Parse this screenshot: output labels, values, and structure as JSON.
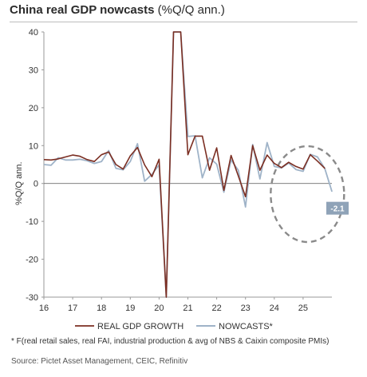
{
  "title": {
    "main": "China real GDP nowcasts",
    "suffix": " (%Q/Q ann.)"
  },
  "footnote": "* F(real retail sales, real FAI, industrial production & avg of NBS & Caixin composite PMIs)",
  "source": "Source: Pictet Asset Management, CEIC, Refinitiv",
  "colors": {
    "gdp": "#7b2e22",
    "nowcast": "#9fb3c8",
    "callout_bg": "#8fa3b8",
    "circle": "#8a8a8a",
    "grid": "#e9e9e9"
  },
  "chart_data": {
    "type": "line",
    "ylabel": "%Q/Q ann.",
    "xlabel": "",
    "ylim": [
      -30,
      40
    ],
    "yticks": [
      -30,
      -20,
      -10,
      0,
      10,
      20,
      30,
      40
    ],
    "xlim": [
      2016,
      2026
    ],
    "xticks": [
      2016,
      2017,
      2018,
      2019,
      2020,
      2021,
      2022,
      2023,
      2024,
      2025
    ],
    "xtick_labels": [
      "16",
      "17",
      "18",
      "19",
      "20",
      "21",
      "22",
      "23",
      "24",
      "25"
    ],
    "grid": false,
    "legend": "bottom",
    "series": [
      {
        "name": "REAL GDP GROWTH",
        "points": [
          [
            2016.0,
            6.3
          ],
          [
            2016.25,
            6.2
          ],
          [
            2016.5,
            6.5
          ],
          [
            2016.75,
            7.0
          ],
          [
            2017.0,
            7.5
          ],
          [
            2017.25,
            7.2
          ],
          [
            2017.5,
            6.3
          ],
          [
            2017.75,
            5.8
          ],
          [
            2018.0,
            7.6
          ],
          [
            2018.25,
            8.3
          ],
          [
            2018.5,
            5.0
          ],
          [
            2018.75,
            3.8
          ],
          [
            2019.0,
            7.3
          ],
          [
            2019.25,
            9.5
          ],
          [
            2019.5,
            4.9
          ],
          [
            2019.75,
            1.8
          ],
          [
            2020.0,
            6.4
          ],
          [
            2020.25,
            -30.0
          ],
          [
            2020.5,
            40.0
          ],
          [
            2020.75,
            40.0
          ],
          [
            2021.0,
            7.6
          ],
          [
            2021.25,
            12.5
          ],
          [
            2021.5,
            12.5
          ],
          [
            2021.75,
            3.5
          ],
          [
            2022.0,
            9.4
          ],
          [
            2022.25,
            -1.8
          ],
          [
            2022.5,
            7.4
          ],
          [
            2022.75,
            2.0
          ],
          [
            2023.0,
            -3.5
          ],
          [
            2023.25,
            10.0
          ],
          [
            2023.5,
            3.5
          ],
          [
            2023.75,
            7.5
          ],
          [
            2024.0,
            5.3
          ],
          [
            2024.25,
            4.2
          ],
          [
            2024.5,
            5.6
          ],
          [
            2024.75,
            4.5
          ],
          [
            2025.0,
            3.8
          ],
          [
            2025.25,
            7.6
          ],
          [
            2025.5,
            5.9
          ],
          [
            2025.75,
            4.0
          ]
        ]
      },
      {
        "name": "NOWCASTS*",
        "points": [
          [
            2016.0,
            5.0
          ],
          [
            2016.25,
            4.8
          ],
          [
            2016.5,
            6.8
          ],
          [
            2016.75,
            6.2
          ],
          [
            2017.0,
            6.2
          ],
          [
            2017.25,
            6.4
          ],
          [
            2017.5,
            6.0
          ],
          [
            2017.75,
            5.3
          ],
          [
            2018.0,
            5.8
          ],
          [
            2018.25,
            8.7
          ],
          [
            2018.5,
            4.0
          ],
          [
            2018.75,
            3.6
          ],
          [
            2019.0,
            5.8
          ],
          [
            2019.25,
            10.5
          ],
          [
            2019.5,
            0.6
          ],
          [
            2019.75,
            2.4
          ],
          [
            2020.0,
            4.9
          ],
          [
            2020.25,
            -30.0
          ],
          [
            2020.5,
            40.0
          ],
          [
            2020.75,
            40.0
          ],
          [
            2021.0,
            12.4
          ],
          [
            2021.25,
            12.6
          ],
          [
            2021.5,
            1.5
          ],
          [
            2021.75,
            6.8
          ],
          [
            2022.0,
            5.1
          ],
          [
            2022.25,
            -2.3
          ],
          [
            2022.5,
            6.2
          ],
          [
            2022.75,
            3.5
          ],
          [
            2023.0,
            -6.2
          ],
          [
            2023.25,
            10.3
          ],
          [
            2023.5,
            1.2
          ],
          [
            2023.75,
            10.8
          ],
          [
            2024.0,
            4.5
          ],
          [
            2024.25,
            4.1
          ],
          [
            2024.5,
            5.4
          ],
          [
            2024.75,
            3.7
          ],
          [
            2025.0,
            3.2
          ],
          [
            2025.25,
            7.7
          ],
          [
            2025.5,
            7.0
          ],
          [
            2025.75,
            4.0
          ],
          [
            2026.0,
            -2.1
          ]
        ]
      }
    ],
    "annotations": [
      {
        "label": "-2.1",
        "x": 2026.0,
        "y": -2.1
      }
    ]
  }
}
